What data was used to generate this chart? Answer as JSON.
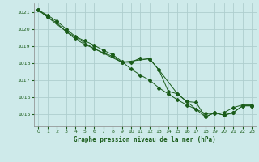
{
  "title": "Graphe pression niveau de la mer (hPa)",
  "background_color": "#ceeaea",
  "grid_color": "#aecece",
  "line_color": "#1a5c1a",
  "marker_color": "#1a5c1a",
  "label_color": "#1a5c1a",
  "xlim": [
    -0.5,
    23.5
  ],
  "ylim": [
    1014.3,
    1021.5
  ],
  "yticks": [
    1015,
    1016,
    1017,
    1018,
    1019,
    1020,
    1021
  ],
  "xticks": [
    0,
    1,
    2,
    3,
    4,
    5,
    6,
    7,
    8,
    9,
    10,
    11,
    12,
    13,
    14,
    15,
    16,
    17,
    18,
    19,
    20,
    21,
    22,
    23
  ],
  "series1_x": [
    0,
    1,
    2,
    3,
    4,
    5,
    6,
    7,
    8,
    9,
    10,
    11,
    12,
    13,
    14,
    15,
    16,
    17,
    18,
    19,
    20,
    21,
    22,
    23
  ],
  "series1_y": [
    1021.1,
    1020.8,
    1020.45,
    1020.0,
    1019.55,
    1019.3,
    1019.05,
    1018.75,
    1018.5,
    1018.1,
    1017.65,
    1017.3,
    1017.0,
    1016.55,
    1016.2,
    1015.85,
    1015.55,
    1015.3,
    1015.05,
    1015.05,
    1015.1,
    1015.4,
    1015.55,
    1015.55
  ],
  "series2_x": [
    0,
    1,
    2,
    3,
    4,
    5,
    6,
    7,
    8,
    9,
    10,
    11,
    12,
    13,
    14,
    15,
    16,
    17,
    18,
    19,
    20,
    21,
    22,
    23
  ],
  "series2_y": [
    1021.1,
    1020.7,
    1020.35,
    1019.85,
    1019.4,
    1019.1,
    1018.85,
    1018.6,
    1018.4,
    1018.05,
    1018.05,
    1018.3,
    1018.25,
    1017.6,
    1016.35,
    1016.2,
    1015.75,
    1015.7,
    1014.85,
    1015.1,
    1014.95,
    1015.1,
    1015.5,
    1015.5
  ],
  "series3_x": [
    0,
    3,
    6,
    9,
    12,
    13,
    15,
    16,
    18,
    19,
    20,
    21,
    22,
    23
  ],
  "series3_y": [
    1021.1,
    1019.85,
    1018.85,
    1018.05,
    1018.25,
    1017.6,
    1016.2,
    1015.75,
    1014.85,
    1015.1,
    1014.95,
    1015.1,
    1015.5,
    1015.5
  ]
}
